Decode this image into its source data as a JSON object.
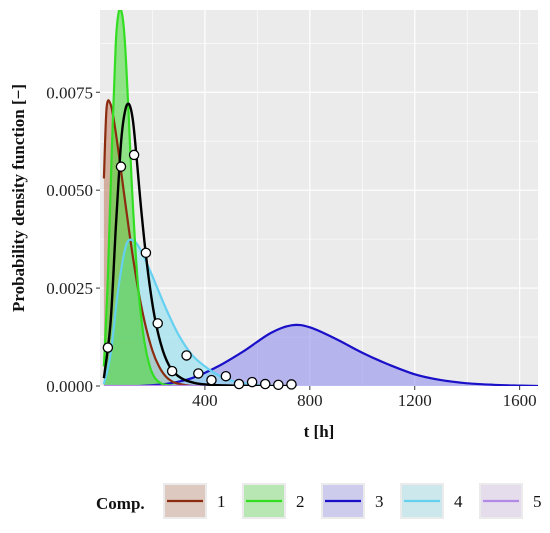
{
  "chart_data": {
    "type": "area",
    "xlabel": "t [h]",
    "ylabel": "Probability density function [−]",
    "xlim": [
      0,
      1670
    ],
    "ylim": [
      0,
      0.0096
    ],
    "x_ticks": [
      400,
      800,
      1200,
      1600
    ],
    "x_tick_labels": [
      "400",
      "800",
      "1200",
      "1600"
    ],
    "y_ticks": [
      0.0,
      0.0025,
      0.005,
      0.0075
    ],
    "y_tick_labels": [
      "0.0000",
      "0.0025",
      "0.0050",
      "0.0075"
    ],
    "grid": true,
    "legend": {
      "title": "Comp.",
      "placement": "bottom",
      "entries": [
        "1",
        "2",
        "3",
        "4",
        "5"
      ]
    },
    "series": [
      {
        "name": "1",
        "color": "#8b2c10",
        "fill": "#c07a5c",
        "x": [
          15,
          25,
          40,
          55,
          70,
          90,
          110,
          130,
          150,
          175,
          200,
          225,
          250,
          280,
          320,
          360
        ],
        "y": [
          0.0053,
          0.0071,
          0.0072,
          0.0067,
          0.006,
          0.005,
          0.004,
          0.0031,
          0.0023,
          0.0015,
          0.0009,
          0.0005,
          0.00025,
          0.0001,
          3e-05,
          0.0
        ]
      },
      {
        "name": "2",
        "color": "#33dd22",
        "fill": "#44dd33",
        "x": [
          15,
          30,
          45,
          60,
          70,
          80,
          90,
          100,
          110,
          120,
          135,
          150,
          170,
          190,
          210,
          235,
          260,
          300
        ],
        "y": [
          0.0005,
          0.0028,
          0.006,
          0.0087,
          0.0095,
          0.0096,
          0.0092,
          0.0082,
          0.0068,
          0.0053,
          0.0035,
          0.0022,
          0.0011,
          0.0005,
          0.0002,
          6e-05,
          2e-05,
          0.0
        ]
      },
      {
        "name": "3",
        "color": "#1a10c8",
        "fill": "#8b86ee",
        "x": [
          150,
          250,
          350,
          450,
          550,
          650,
          730,
          800,
          900,
          1000,
          1100,
          1200,
          1300,
          1400,
          1500,
          1600,
          1670
        ],
        "y": [
          0.0,
          5e-05,
          0.0002,
          0.0005,
          0.0009,
          0.00135,
          0.00155,
          0.0015,
          0.0012,
          0.00085,
          0.00055,
          0.0003,
          0.00015,
          7e-05,
          3e-05,
          1e-05,
          0.0
        ]
      },
      {
        "name": "4",
        "color": "#66d0f0",
        "fill": "#88e0f0",
        "x": [
          15,
          40,
          70,
          100,
          130,
          160,
          200,
          250,
          300,
          350,
          400,
          450,
          500,
          560,
          620,
          700
        ],
        "y": [
          5e-05,
          0.0008,
          0.0025,
          0.0036,
          0.0037,
          0.0034,
          0.0028,
          0.002,
          0.0013,
          0.0008,
          0.0005,
          0.00028,
          0.00014,
          6e-05,
          2e-05,
          0.0
        ]
      },
      {
        "name": "5",
        "color": "#b28ae6",
        "fill": "#d8b8ee",
        "x": [
          15,
          600
        ],
        "y": [
          0.0,
          0.0
        ]
      }
    ],
    "fit_curve": {
      "color": "#000000",
      "x": [
        15,
        40,
        60,
        80,
        95,
        110,
        125,
        140,
        160,
        185,
        210,
        240,
        270,
        310,
        360,
        420,
        500,
        600,
        750
      ],
      "y": [
        0.0002,
        0.0016,
        0.004,
        0.0062,
        0.007,
        0.0072,
        0.0068,
        0.0058,
        0.0043,
        0.0028,
        0.0017,
        0.0009,
        0.00045,
        0.0002,
        8e-05,
        3e-05,
        1e-05,
        0.0,
        0.0
      ]
    },
    "observations": {
      "x": [
        30,
        80,
        130,
        175,
        220,
        275,
        330,
        375,
        425,
        480,
        530,
        580,
        630,
        680,
        730
      ],
      "y": [
        0.00098,
        0.0056,
        0.0059,
        0.0034,
        0.0016,
        0.00038,
        0.00078,
        0.00032,
        0.00015,
        0.00025,
        5e-05,
        0.0001,
        5e-05,
        3e-05,
        4e-05
      ]
    }
  }
}
